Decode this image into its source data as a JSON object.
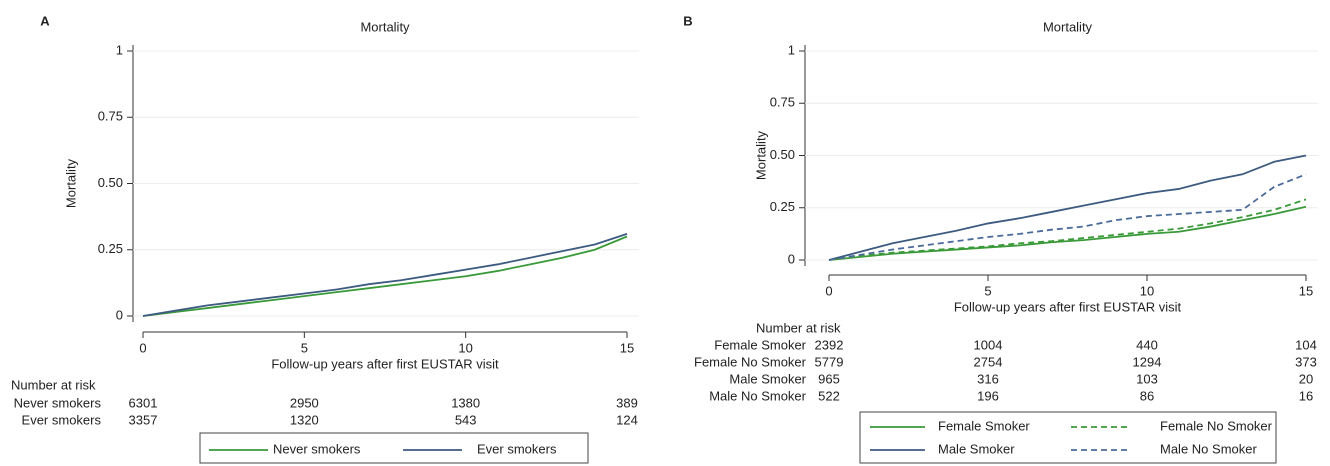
{
  "chart_data": [
    {
      "type": "line",
      "panel_label": "A",
      "title": "Mortality",
      "x_label": "Follow-up years after first EUSTAR visit",
      "y_label": "Mortality",
      "x": [
        0,
        1,
        2,
        3,
        4,
        5,
        6,
        7,
        8,
        9,
        10,
        11,
        12,
        13,
        14,
        15
      ],
      "series": [
        {
          "name": "Never smokers",
          "color": "#3a9a3a",
          "dash": false,
          "values": [
            0,
            0.015,
            0.03,
            0.045,
            0.06,
            0.075,
            0.09,
            0.105,
            0.12,
            0.135,
            0.15,
            0.17,
            0.195,
            0.22,
            0.25,
            0.3
          ]
        },
        {
          "name": "Ever smokers",
          "color": "#3d5a80",
          "dash": false,
          "values": [
            0,
            0.02,
            0.04,
            0.055,
            0.07,
            0.085,
            0.1,
            0.12,
            0.135,
            0.155,
            0.175,
            0.195,
            0.22,
            0.245,
            0.27,
            0.31
          ]
        }
      ],
      "xlim": [
        0,
        15
      ],
      "xticks": [
        0,
        5,
        10,
        15
      ],
      "ylim": [
        0,
        1
      ],
      "yticks": [
        0,
        0.25,
        {
          "value": 0.5,
          "label": "0.50"
        },
        0.75,
        1
      ],
      "grid": true,
      "risk_table": {
        "title": "Number at risk",
        "rows": [
          {
            "name": "Never smokers",
            "values": [
              "6301",
              "2950",
              "1380",
              "389"
            ]
          },
          {
            "name": "Ever smokers",
            "values": [
              "3357",
              "1320",
              "543",
              "124"
            ]
          }
        ]
      }
    },
    {
      "type": "line",
      "panel_label": "B",
      "title": "Mortality",
      "x_label": "Follow-up years after first EUSTAR visit",
      "y_label": "Mortality",
      "x": [
        0,
        1,
        2,
        3,
        4,
        5,
        6,
        7,
        8,
        9,
        10,
        11,
        12,
        13,
        14,
        15
      ],
      "series": [
        {
          "name": "Female Smoker",
          "color": "#3a9a3a",
          "dash": false,
          "values": [
            0,
            0.015,
            0.03,
            0.04,
            0.05,
            0.06,
            0.07,
            0.085,
            0.095,
            0.11,
            0.125,
            0.135,
            0.16,
            0.19,
            0.22,
            0.255
          ]
        },
        {
          "name": "Female No Smoker",
          "color": "#3a9a3a",
          "dash": true,
          "values": [
            0,
            0.02,
            0.035,
            0.045,
            0.055,
            0.065,
            0.08,
            0.09,
            0.105,
            0.12,
            0.135,
            0.15,
            0.175,
            0.205,
            0.24,
            0.29
          ]
        },
        {
          "name": "Male Smoker",
          "color": "#3d5a80",
          "dash": false,
          "values": [
            0,
            0.04,
            0.08,
            0.11,
            0.14,
            0.175,
            0.2,
            0.23,
            0.26,
            0.29,
            0.32,
            0.34,
            0.38,
            0.41,
            0.47,
            0.5
          ]
        },
        {
          "name": "Male No Smoker",
          "color": "#4a6a9a",
          "dash": true,
          "values": [
            0,
            0.025,
            0.05,
            0.07,
            0.09,
            0.11,
            0.125,
            0.145,
            0.16,
            0.19,
            0.21,
            0.22,
            0.23,
            0.24,
            0.35,
            0.41
          ]
        }
      ],
      "xlim": [
        0,
        15
      ],
      "xticks": [
        0,
        5,
        10,
        15
      ],
      "ylim": [
        0,
        1
      ],
      "yticks": [
        0,
        0.25,
        {
          "value": 0.5,
          "label": "0.50"
        },
        0.75,
        1
      ],
      "grid": true,
      "risk_table": {
        "title": "Number at risk",
        "rows": [
          {
            "name": "Female Smoker",
            "values": [
              "2392",
              "1004",
              "440",
              "104"
            ]
          },
          {
            "name": "Female No Smoker",
            "values": [
              "5779",
              "2754",
              "1294",
              "373"
            ]
          },
          {
            "name": "Male Smoker",
            "values": [
              "965",
              "316",
              "103",
              "20"
            ]
          },
          {
            "name": "Male No Smoker",
            "values": [
              "522",
              "196",
              "86",
              "16"
            ]
          }
        ]
      }
    }
  ]
}
